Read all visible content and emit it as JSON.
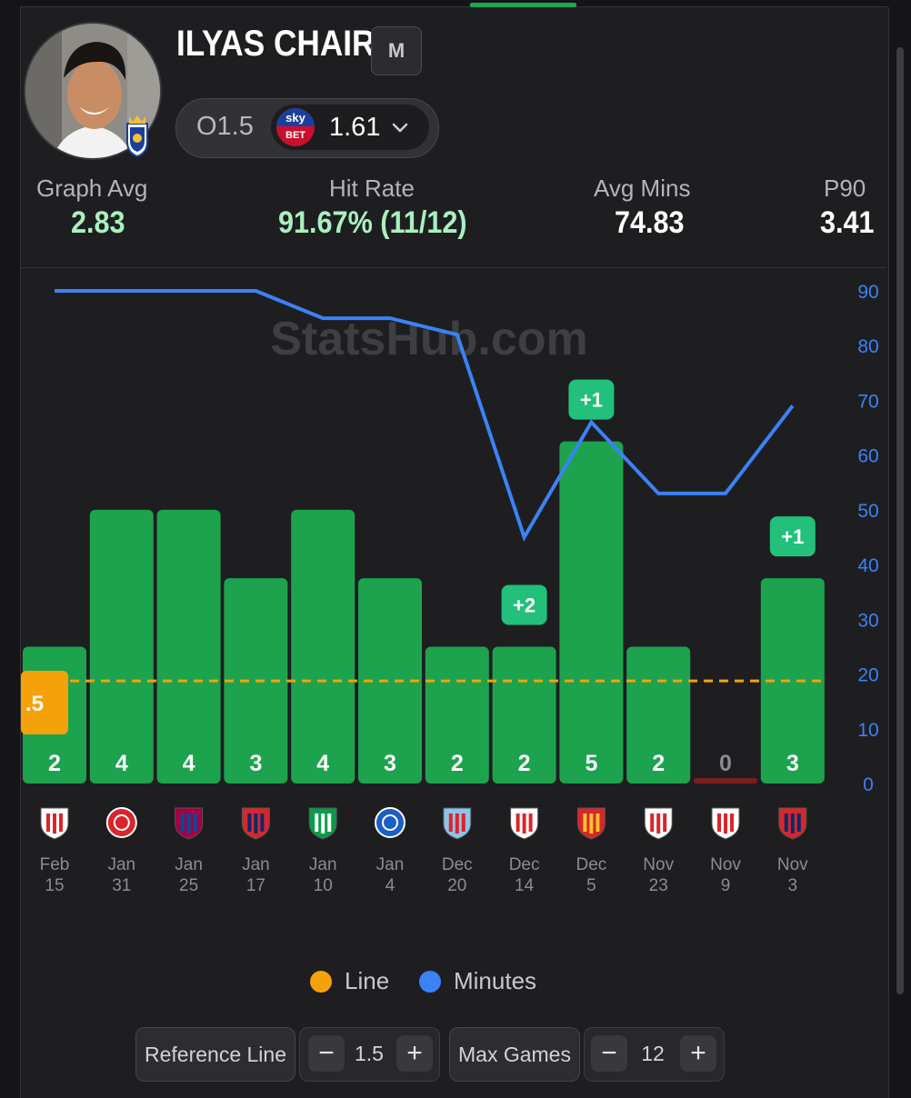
{
  "player": {
    "name": "ILYAS CHAIRA",
    "position_badge": "M"
  },
  "odds": {
    "line": "O1.5",
    "bookmaker_top": "sky",
    "bookmaker_bottom": "BET",
    "price": "1.61"
  },
  "stats": {
    "graph_avg_label": "Graph Avg",
    "graph_avg_value": "2.83",
    "hit_rate_label": "Hit Rate",
    "hit_rate_value": "91.67% (11/12)",
    "avg_mins_label": "Avg Mins",
    "avg_mins_value": "74.83",
    "p90_label": "P90",
    "p90_value": "3.41"
  },
  "watermark": "StatsHub.com",
  "colors": {
    "bar_hit": "#1da34e",
    "bar_miss": "#7a1f1f",
    "line": "#f5a20a",
    "minutes": "#3b82f6",
    "delta_badge": "#22c07a"
  },
  "chart_data": {
    "type": "bar",
    "reference_line": 1.5,
    "reference_label": ".5",
    "bar_ylim": [
      0,
      7.2
    ],
    "categories": [
      {
        "month": "Feb",
        "day": "15",
        "opponent_icon": "athletic-bilbao-crest-icon"
      },
      {
        "month": "Jan",
        "day": "31",
        "opponent_icon": "girona-crest-icon"
      },
      {
        "month": "Jan",
        "day": "25",
        "opponent_icon": "barcelona-crest-icon"
      },
      {
        "month": "Jan",
        "day": "17",
        "opponent_icon": "osasuna-crest-icon"
      },
      {
        "month": "Jan",
        "day": "10",
        "opponent_icon": "real-betis-crest-icon"
      },
      {
        "month": "Jan",
        "day": "4",
        "opponent_icon": "alaves-crest-icon"
      },
      {
        "month": "Dec",
        "day": "20",
        "opponent_icon": "celta-vigo-crest-icon"
      },
      {
        "month": "Dec",
        "day": "14",
        "opponent_icon": "sevilla-crest-icon"
      },
      {
        "month": "Dec",
        "day": "5",
        "opponent_icon": "mallorca-crest-icon"
      },
      {
        "month": "Nov",
        "day": "23",
        "opponent_icon": "rayo-vallecano-crest-icon"
      },
      {
        "month": "Nov",
        "day": "9",
        "opponent_icon": "athletic-bilbao-crest-icon"
      },
      {
        "month": "Nov",
        "day": "3",
        "opponent_icon": "osasuna-crest-icon"
      }
    ],
    "series": [
      {
        "name": "Line",
        "values": [
          2,
          4,
          4,
          3,
          4,
          3,
          2,
          2,
          5,
          2,
          0,
          3
        ]
      },
      {
        "name": "Minutes",
        "values": [
          90,
          90,
          90,
          90,
          85,
          85,
          82,
          45,
          66,
          53,
          53,
          69
        ]
      }
    ],
    "delta_badges": [
      {
        "index": 7,
        "text": "+2"
      },
      {
        "index": 8,
        "text": "+1"
      },
      {
        "index": 11,
        "text": "+1"
      }
    ],
    "minutes_axis": {
      "ylim": [
        0,
        90
      ],
      "ticks": [
        "90",
        "80",
        "70",
        "60",
        "50",
        "40",
        "30",
        "20",
        "10",
        "0"
      ]
    },
    "legend": [
      {
        "label": "Line",
        "color": "#f5a20a"
      },
      {
        "label": "Minutes",
        "color": "#3b82f6"
      }
    ]
  },
  "controls": {
    "reference_line_label": "Reference Line",
    "reference_line_value": "1.5",
    "max_games_label": "Max Games",
    "max_games_value": "12",
    "minus": "−",
    "plus": "+"
  }
}
